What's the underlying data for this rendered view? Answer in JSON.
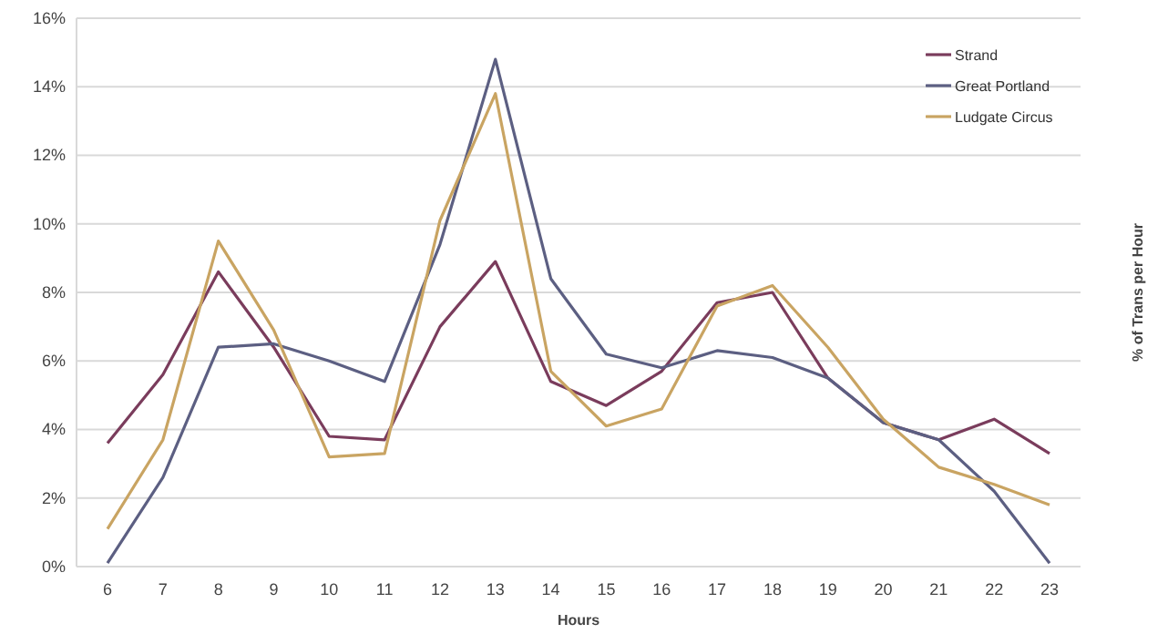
{
  "chart_data": {
    "type": "line",
    "xlabel": "Hours",
    "ylabel": "% of Trans per Hour",
    "categories": [
      "6",
      "7",
      "8",
      "9",
      "10",
      "11",
      "12",
      "13",
      "14",
      "15",
      "16",
      "17",
      "18",
      "19",
      "20",
      "21",
      "22",
      "23"
    ],
    "series": [
      {
        "name": "Strand",
        "color": "#7a3c5c",
        "values": [
          3.6,
          5.6,
          8.6,
          6.4,
          3.8,
          3.7,
          7.0,
          8.9,
          5.4,
          4.7,
          5.7,
          7.7,
          8.0,
          5.5,
          4.2,
          3.7,
          4.3,
          3.3
        ]
      },
      {
        "name": "Great Portland",
        "color": "#5c5f82",
        "values": [
          0.1,
          2.6,
          6.4,
          6.5,
          6.0,
          5.4,
          9.4,
          14.8,
          8.4,
          6.2,
          5.8,
          6.3,
          6.1,
          5.5,
          4.2,
          3.7,
          2.2,
          0.1
        ]
      },
      {
        "name": "Ludgate Circus",
        "color": "#c9a462",
        "values": [
          1.1,
          3.7,
          9.5,
          6.9,
          3.2,
          3.3,
          10.1,
          13.8,
          5.7,
          4.1,
          4.6,
          7.6,
          8.2,
          6.4,
          4.3,
          2.9,
          2.4,
          1.8
        ]
      }
    ],
    "ylim": [
      0,
      16
    ],
    "yticks": [
      {
        "value": 0,
        "label": "0%"
      },
      {
        "value": 2,
        "label": "2%"
      },
      {
        "value": 4,
        "label": "4%"
      },
      {
        "value": 6,
        "label": "6%"
      },
      {
        "value": 8,
        "label": "8%"
      },
      {
        "value": 10,
        "label": "10%"
      },
      {
        "value": 12,
        "label": "12%"
      },
      {
        "value": 14,
        "label": "14%"
      },
      {
        "value": 16,
        "label": "16%"
      }
    ],
    "grid": "y",
    "legend": "top right",
    "marker": "none",
    "line_style": "solid"
  }
}
